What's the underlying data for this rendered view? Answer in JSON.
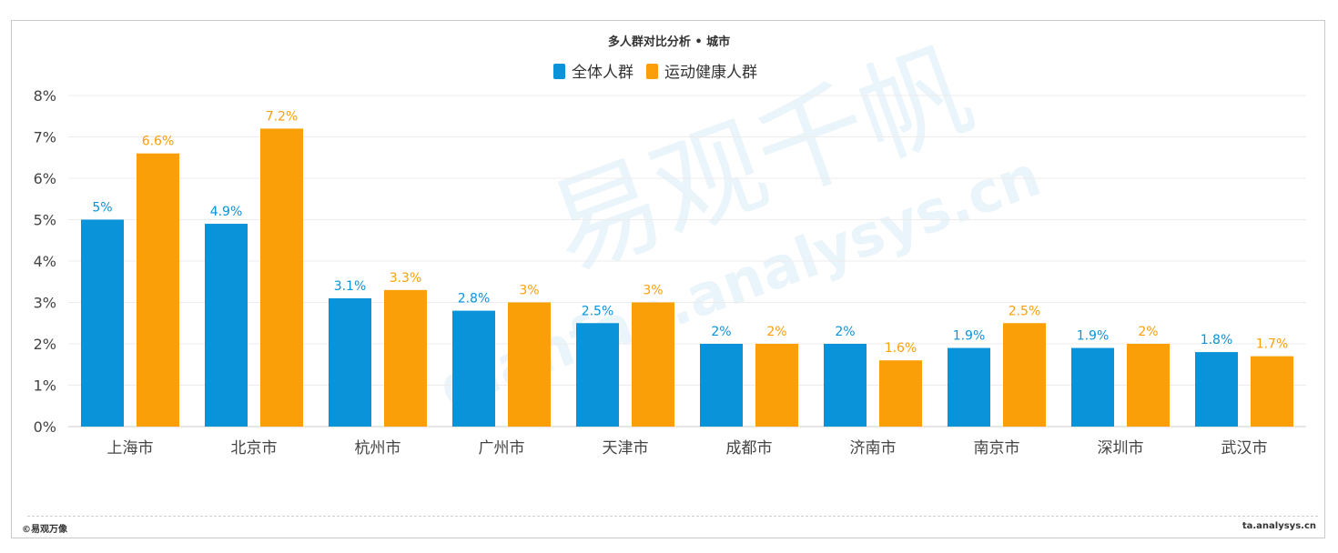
{
  "chart_data": {
    "type": "bar",
    "title": "多人群对比分析 • 城市",
    "categories": [
      "上海市",
      "北京市",
      "杭州市",
      "广州市",
      "天津市",
      "成都市",
      "济南市",
      "南京市",
      "深圳市",
      "武汉市"
    ],
    "series": [
      {
        "name": "全体人群",
        "color": "#0a93d8",
        "values": [
          5,
          4.9,
          3.1,
          2.8,
          2.5,
          2,
          2,
          1.9,
          1.9,
          1.8
        ],
        "labels": [
          "5%",
          "4.9%",
          "3.1%",
          "2.8%",
          "2.5%",
          "2%",
          "2%",
          "1.9%",
          "1.9%",
          "1.8%"
        ]
      },
      {
        "name": "运动健康人群",
        "color": "#fb9f09",
        "values": [
          6.6,
          7.2,
          3.3,
          3,
          3,
          2,
          1.6,
          2.5,
          2,
          1.7
        ],
        "labels": [
          "6.6%",
          "7.2%",
          "3.3%",
          "3%",
          "3%",
          "2%",
          "1.6%",
          "2.5%",
          "2%",
          "1.7%"
        ]
      }
    ],
    "ylim": [
      0,
      8
    ],
    "yticks": [
      0,
      1,
      2,
      3,
      4,
      5,
      6,
      7,
      8
    ],
    "ytick_labels": [
      "0%",
      "1%",
      "2%",
      "3%",
      "4%",
      "5%",
      "6%",
      "7%",
      "8%"
    ],
    "grid": true,
    "legend_position": "top-center"
  },
  "watermark": {
    "text_cn": "易观千帆",
    "text_url": "qianfan.analysys.cn"
  },
  "footer": {
    "left": "©易观万像",
    "right": "ta.analysys.cn"
  }
}
